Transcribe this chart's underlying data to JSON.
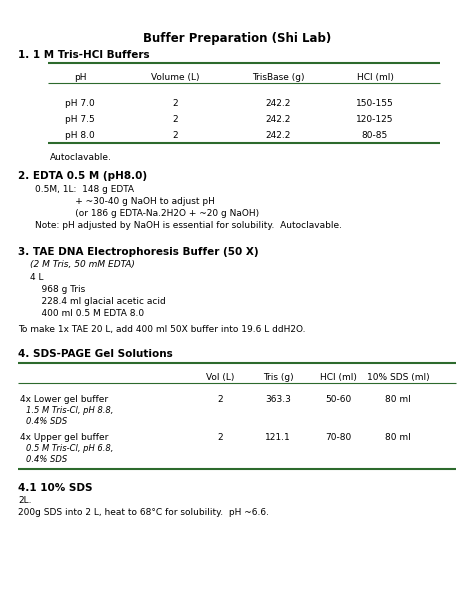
{
  "title": "Buffer Preparation (Shi Lab)",
  "background_color": "#ffffff",
  "text_color": "#000000",
  "green_color": "#2d6a2d",
  "section1_heading": "1. 1 M Tris-HCl Buffers",
  "table1_headers": [
    "pH",
    "Volume (L)",
    "TrisBase (g)",
    "HCl (ml)"
  ],
  "table1_rows": [
    [
      "pH 7.0",
      "2",
      "242.2",
      "150-155"
    ],
    [
      "pH 7.5",
      "2",
      "242.2",
      "120-125"
    ],
    [
      "pH 8.0",
      "2",
      "242.2",
      "80-85"
    ]
  ],
  "table1_note": "Autoclavable.",
  "section2_heading": "2. EDTA 0.5 M (pH8.0)",
  "section2_text1": "0.5M, 1L:  148 g EDTA",
  "section2_text2": "              + ~30-40 g NaOH to adjust pH",
  "section2_text3": "              (or 186 g EDTA-Na.2H2O + ~20 g NaOH)",
  "section2_text4": "Note: pH adjusted by NaOH is essential for solubility.  Autoclavable.",
  "section3_heading": "3. TAE DNA Electrophoresis Buffer (50 X)",
  "section3_subtitle": "(2 M Tris, 50 mM EDTA)",
  "section3_lines": [
    "4 L",
    "    968 g Tris",
    "    228.4 ml glacial acetic acid",
    "    400 ml 0.5 M EDTA 8.0"
  ],
  "section3_note": "To make 1x TAE 20 L, add 400 ml 50X buffer into 19.6 L ddH2O.",
  "section4_heading": "4. SDS-PAGE Gel Solutions",
  "table2_headers": [
    "",
    "Vol (L)",
    "Tris (g)",
    "HCl (ml)",
    "10% SDS (ml)"
  ],
  "table2_col1_row1_line1": "4x Lower gel buffer",
  "table2_col1_row1_line2": "1.5 M Tris-Cl, pH 8.8,",
  "table2_col1_row1_line3": "0.4% SDS",
  "table2_col1_row2_line1": "4x Upper gel buffer",
  "table2_col1_row2_line2": "0.5 M Tris-Cl, pH 6.8,",
  "table2_col1_row2_line3": "0.4% SDS",
  "table2_row1": [
    "2",
    "363.3",
    "50-60",
    "80 ml"
  ],
  "table2_row2": [
    "2",
    "121.1",
    "70-80",
    "80 ml"
  ],
  "section41_heading": "4.1 10% SDS",
  "section41_line1": "2L.",
  "section41_line2": "200g SDS into 2 L, heat to 68°C for solubility.  pH ~6.6."
}
